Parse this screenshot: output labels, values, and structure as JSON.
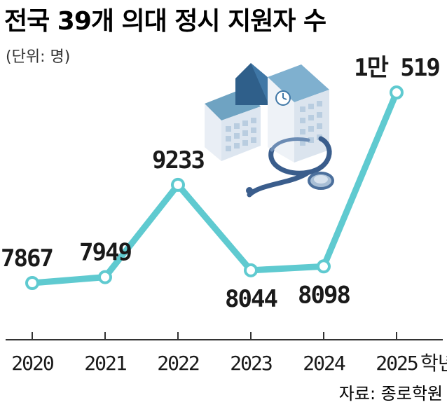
{
  "chart_data": {
    "type": "line",
    "title": "전국 39개 의대 정시 지원자 수",
    "subtitle": "(단위: 명)",
    "categories": [
      "2020",
      "2021",
      "2022",
      "2023",
      "2024",
      "2025"
    ],
    "x_suffix": "학년도",
    "values": [
      7867,
      7949,
      9233,
      8044,
      8098,
      10519
    ],
    "data_labels": [
      "7867",
      "7949",
      "9233",
      "8044",
      "8098",
      "1만 519"
    ],
    "ylim": [
      6800,
      11000
    ],
    "grid": false,
    "legend": "none",
    "source": "자료: 종로학원"
  },
  "colors": {
    "line": "#5fcad0",
    "marker_fill": "#ffffff",
    "text": "#1a1a1a",
    "axis": "#333333"
  },
  "icons": [
    "school-building-icon",
    "stethoscope-icon"
  ]
}
